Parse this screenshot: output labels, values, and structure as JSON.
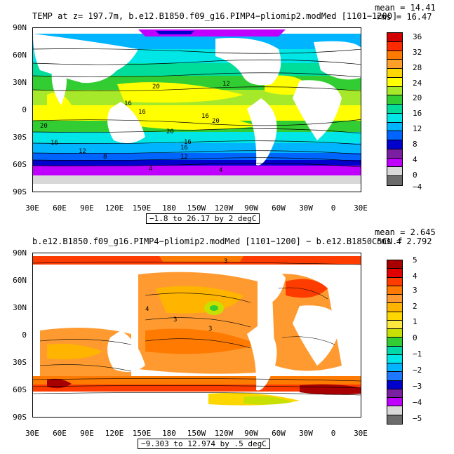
{
  "panel1": {
    "title": "TEMP at z= 197.7m, b.e12.B1850.f09_g16.PIMP4−pliomip2.modMed [1101−1200]",
    "mean": "mean = 14.41",
    "rms": "rms = 16.47",
    "range": "−1.8 to 26.17 by 2 degC",
    "colorbar_labels": [
      "36",
      "32",
      "28",
      "24",
      "20",
      "16",
      "12",
      "8",
      "4",
      "0",
      "−4"
    ],
    "colorbar_colors": [
      "#d20000",
      "#ff2a00",
      "#ff7a00",
      "#ff9f2a",
      "#ffd700",
      "#ffff00",
      "#a6e82a",
      "#32cd32",
      "#00dd9a",
      "#00e5e5",
      "#00b4ff",
      "#0064ff",
      "#0000cd",
      "#7b1fa2",
      "#c000ff",
      "#d8d8d8",
      "#6b6b6b"
    ],
    "contour_labels": [
      "20",
      "16",
      "12",
      "8",
      "4",
      "20",
      "16",
      "16",
      "20",
      "12",
      "16",
      "16",
      "20",
      "16",
      "12",
      "4"
    ]
  },
  "panel2": {
    "title": "b.e12.B1850.f09_g16.PIMP4−pliomip2.modMed [1101−1200] − b.e12.B1850C5CN.f",
    "mean": "mean = 2.645",
    "rms": "rms = 2.792",
    "range": "−9.303 to 12.974 by .5 degC",
    "colorbar_labels": [
      "5",
      "4",
      "3",
      "2",
      "1",
      "0",
      "−1",
      "−2",
      "−3",
      "−4",
      "−5"
    ],
    "colorbar_colors": [
      "#a80000",
      "#e00000",
      "#ff3c00",
      "#ff7a00",
      "#ff9a30",
      "#ffb400",
      "#ffd700",
      "#ffe840",
      "#c8e000",
      "#32cd32",
      "#00d8a8",
      "#00e5e5",
      "#00b4ff",
      "#1e78ff",
      "#0000cd",
      "#7b1fa2",
      "#c000ff",
      "#d8d8d8",
      "#6b6b6b"
    ],
    "contour_labels": [
      "3",
      "3",
      "3",
      "4"
    ]
  },
  "axes": {
    "lat_labels": [
      "90N",
      "60N",
      "30N",
      "0",
      "30S",
      "60S",
      "90S"
    ],
    "lon_labels": [
      "30E",
      "60E",
      "90E",
      "120E",
      "150E",
      "180",
      "150W",
      "120W",
      "90W",
      "60W",
      "30W",
      "0",
      "30E"
    ]
  }
}
